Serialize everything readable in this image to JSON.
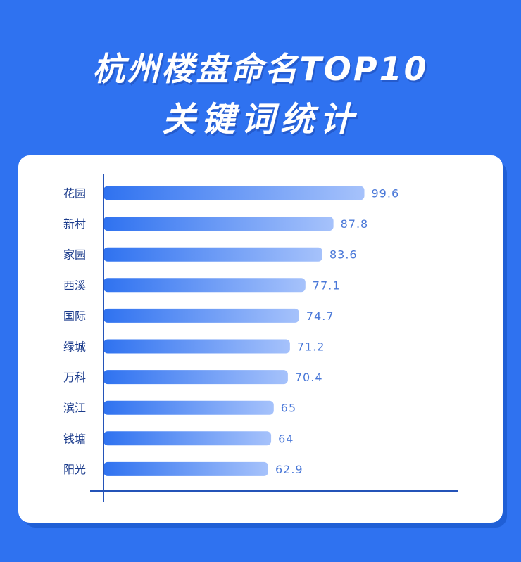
{
  "title_line1": "杭州楼盘命名TOP10",
  "title_line2": "关键词统计",
  "colors": {
    "background": "#2f72f0",
    "card": "#ffffff",
    "bar_start": "#2f72f0",
    "bar_end": "#a6c2fb",
    "label": "#1c3c8c",
    "value": "#4a78d8",
    "axis": "#2453b8"
  },
  "chart_data": {
    "type": "bar",
    "orientation": "horizontal",
    "categories": [
      "花园",
      "新村",
      "家园",
      "西溪",
      "国际",
      "绿城",
      "万科",
      "滨江",
      "钱塘",
      "阳光"
    ],
    "values": [
      99.6,
      87.8,
      83.6,
      77.1,
      74.7,
      71.2,
      70.4,
      65,
      64,
      62.9
    ],
    "value_labels": [
      "99.6",
      "87.8",
      "83.6",
      "77.1",
      "74.7",
      "71.2",
      "70.4",
      "65",
      "64",
      "62.9"
    ],
    "title": "",
    "xlabel": "",
    "ylabel": "",
    "grid": false
  }
}
